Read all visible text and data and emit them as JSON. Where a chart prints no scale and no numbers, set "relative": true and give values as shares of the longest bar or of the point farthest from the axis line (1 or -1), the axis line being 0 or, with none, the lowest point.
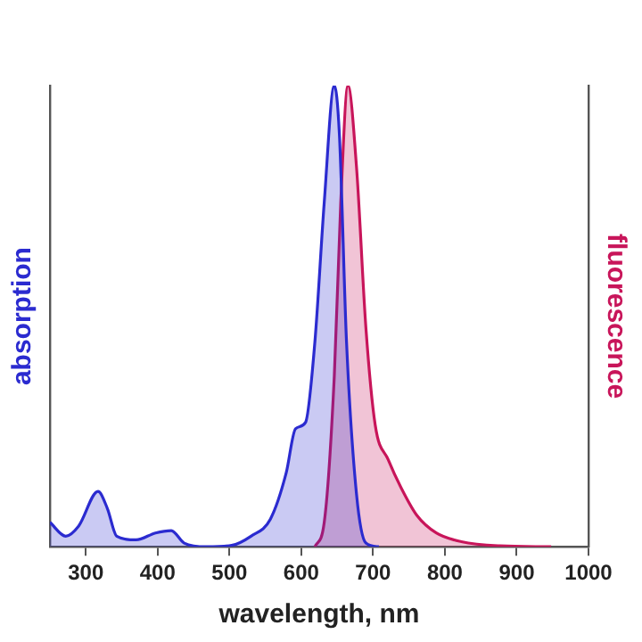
{
  "chart_data": {
    "type": "area",
    "xlabel": "wavelength, nm",
    "ylabel": "absorption",
    "y2label": "fluorescence",
    "relative": true,
    "xlim": [
      250,
      1000
    ],
    "xticks": [
      300,
      400,
      500,
      600,
      700,
      800,
      900,
      1000
    ],
    "grid": false,
    "legend": false,
    "marker": "none",
    "series": [
      {
        "color": "#2b2bd0",
        "x": [
          250,
          272,
          290,
          317,
          330,
          343,
          370,
          397,
          419,
          437,
          468,
          503,
          530,
          557,
          579,
          592,
          606,
          619,
          632,
          646,
          653,
          663,
          677,
          690,
          708
        ],
        "values": [
          0.053,
          0.023,
          0.045,
          0.12,
          0.083,
          0.023,
          0.015,
          0.03,
          0.035,
          0.008,
          0,
          0.003,
          0.023,
          0.06,
          0.16,
          0.256,
          0.27,
          0.445,
          0.747,
          1,
          0.897,
          0.445,
          0.113,
          0.008,
          0
        ]
      },
      {
        "color": "#c8155a",
        "axis": "y2",
        "x": [
          619,
          632,
          646,
          655,
          665,
          677,
          690,
          703,
          721,
          739,
          761,
          788,
          823,
          877,
          948
        ],
        "values": [
          0,
          0.053,
          0.37,
          0.747,
          1,
          0.822,
          0.475,
          0.264,
          0.189,
          0.128,
          0.068,
          0.03,
          0.011,
          0.002,
          0
        ]
      }
    ]
  }
}
